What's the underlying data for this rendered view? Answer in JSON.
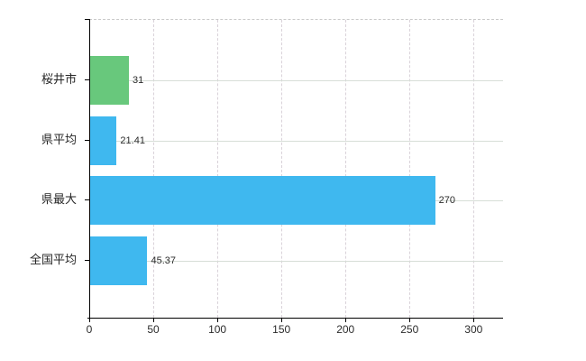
{
  "chart_data": {
    "type": "bar",
    "orientation": "horizontal",
    "title": "",
    "xlabel": "",
    "ylabel": "",
    "categories": [
      "桜井市",
      "県平均",
      "県最大",
      "全国平均"
    ],
    "values": [
      31,
      21.41,
      270,
      45.37
    ],
    "value_labels": [
      "31",
      "21.41",
      "270",
      "45.37"
    ],
    "series": [
      {
        "name": "",
        "values": [
          31,
          21.41,
          270,
          45.37
        ]
      }
    ],
    "bar_colors": [
      "#68c87c",
      "#3fb8ef",
      "#3fb8ef",
      "#3fb8ef"
    ],
    "x_ticks": [
      0,
      50,
      100,
      150,
      200,
      250,
      300
    ],
    "x_tick_labels": [
      "0",
      "50",
      "100",
      "150",
      "200",
      "250",
      "300"
    ],
    "xlim": [
      0,
      323
    ],
    "grid": "on",
    "legend": "none"
  },
  "colors": {
    "bar_blue": "#3fb8ef",
    "bar_green": "#68c87c",
    "axis": "#000000",
    "grid_vertical": "#d9d2d9",
    "grid_horizontal": "#d7ded7",
    "plot_border_dashed": "#c9c9c9",
    "text": "#2b2b2b",
    "background": "#ffffff"
  }
}
